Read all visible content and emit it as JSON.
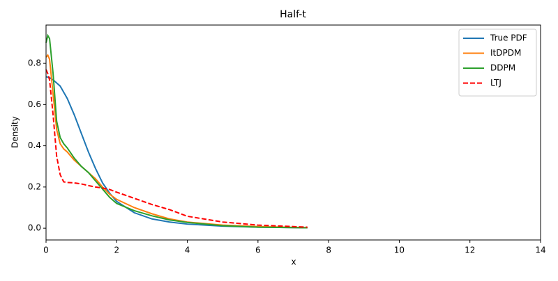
{
  "chart_data": {
    "type": "line",
    "title": "Half-t",
    "x_label": "x",
    "y_label": "Density",
    "x": [
      0,
      0.05,
      0.1,
      0.2,
      0.3,
      0.4,
      0.5,
      0.6,
      0.8,
      1,
      1.2,
      1.4,
      1.6,
      1.8,
      2,
      2.5,
      3,
      3.5,
      4,
      5,
      6,
      7,
      7.4
    ],
    "series": [
      {
        "name": "True PDF",
        "color": "#1f77b4",
        "style": "solid",
        "values": [
          0.735,
          0.733,
          0.73,
          0.72,
          0.705,
          0.69,
          0.66,
          0.63,
          0.55,
          0.46,
          0.37,
          0.29,
          0.22,
          0.17,
          0.13,
          0.075,
          0.045,
          0.03,
          0.02,
          0.01,
          0.005,
          0.003,
          0.002
        ]
      },
      {
        "name": "ItDPDM",
        "color": "#ff7f0e",
        "style": "solid",
        "values": [
          0.83,
          0.84,
          0.82,
          0.65,
          0.48,
          0.41,
          0.385,
          0.37,
          0.33,
          0.3,
          0.27,
          0.24,
          0.2,
          0.165,
          0.14,
          0.1,
          0.07,
          0.045,
          0.03,
          0.015,
          0.008,
          0.004,
          0.003
        ]
      },
      {
        "name": "DDPM",
        "color": "#2ca02c",
        "style": "solid",
        "values": [
          0.9,
          0.935,
          0.92,
          0.75,
          0.52,
          0.44,
          0.41,
          0.39,
          0.34,
          0.3,
          0.27,
          0.23,
          0.19,
          0.15,
          0.12,
          0.085,
          0.06,
          0.04,
          0.028,
          0.012,
          0.005,
          0.003,
          0.002
        ]
      },
      {
        "name": "LTJ",
        "color": "#ff0000",
        "style": "dashed",
        "values": [
          0.77,
          0.75,
          0.72,
          0.55,
          0.35,
          0.26,
          0.225,
          0.222,
          0.22,
          0.215,
          0.207,
          0.2,
          0.195,
          0.188,
          0.175,
          0.145,
          0.115,
          0.09,
          0.058,
          0.03,
          0.015,
          0.008,
          0.005
        ]
      }
    ],
    "xlim": [
      0,
      14
    ],
    "xticks": [
      0,
      2,
      4,
      6,
      8,
      10,
      12,
      14
    ],
    "ylim": [
      -0.057,
      0.986
    ],
    "yticks": [
      {
        "value": 0,
        "label": "0.0"
      },
      0.2,
      0.4,
      0.6,
      0.8
    ],
    "legend": "upper right",
    "grid": false
  }
}
